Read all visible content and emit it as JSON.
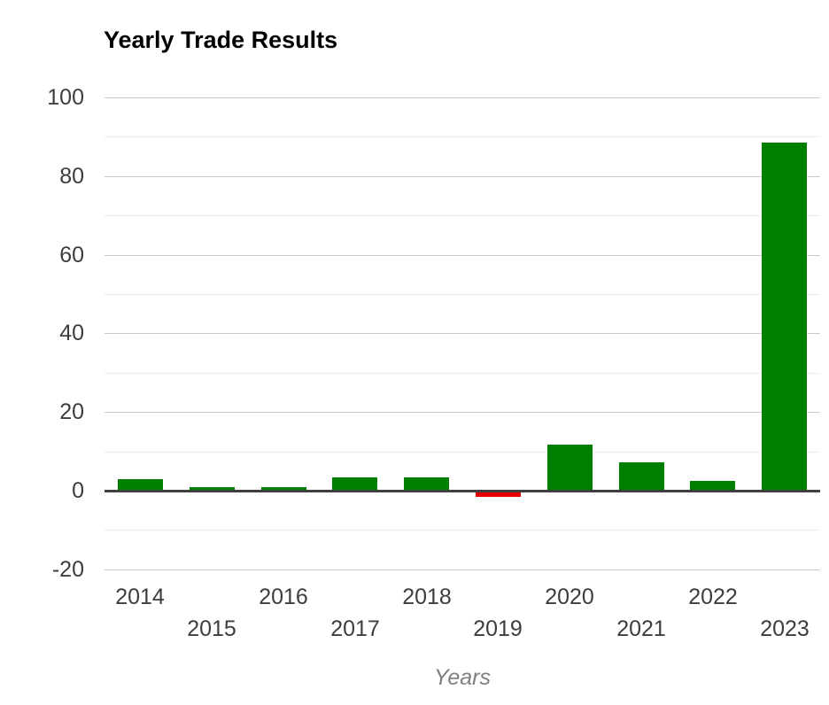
{
  "chart_data": {
    "type": "bar",
    "title": "Yearly Trade Results",
    "xlabel": "Years",
    "ylabel": "",
    "categories": [
      "2014",
      "2015",
      "2016",
      "2017",
      "2018",
      "2019",
      "2020",
      "2021",
      "2022",
      "2023"
    ],
    "values": [
      2.9,
      1.0,
      0.8,
      3.3,
      3.3,
      -1.1,
      11.7,
      7.2,
      2.4,
      88.5
    ],
    "ylim": [
      -20,
      100
    ],
    "yticks_major": [
      100,
      80,
      60,
      40,
      20,
      0,
      -20
    ],
    "yticks_minor": [
      90,
      70,
      50,
      30,
      10,
      -10
    ],
    "grid": "on",
    "legend": "none",
    "x_tick_layout": "staggered-two-rows",
    "bar_positive_color": "#008000",
    "bar_negative_color": "#e80000",
    "axis_line_color": "#404040",
    "gridline_major_color": "#c9c9c9",
    "gridline_minor_color": "#ececec",
    "tick_label_color": "#3d3d3d",
    "title_color": "#000000",
    "xlabel_color": "#7f7f7f"
  }
}
